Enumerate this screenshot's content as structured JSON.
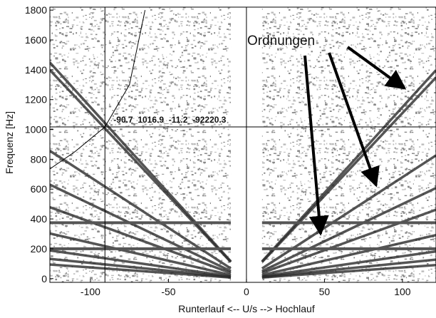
{
  "chart_data": {
    "type": "order-map",
    "xlabel": "Runterlauf <-- U/s --> Hochlauf",
    "ylabel": "Frequenz [Hz]",
    "xlim": [
      -126,
      121.5
    ],
    "ylim": [
      -25,
      1820
    ],
    "xticks": [
      -100,
      -50,
      0,
      50,
      100
    ],
    "yticks": [
      0,
      200,
      400,
      600,
      800,
      1000,
      1200,
      1400,
      1600,
      1800
    ],
    "gap_xlim": [
      -10,
      10
    ],
    "orders": [
      11.5,
      11.1,
      6.8,
      5,
      3.8,
      2.4,
      1.5,
      1.05,
      0.75
    ],
    "constant_frequencies": [
      375,
      200
    ],
    "line_color": "#2a2a2a",
    "curve": {
      "x": [
        -126,
        -110,
        -90.7,
        -75,
        -65
      ],
      "values": [
        735,
        850,
        1017,
        1300,
        1800
      ]
    },
    "cursor": {
      "x": -90.7,
      "y": 1016.9,
      "label": "-90.7_1016.9_-11.2_-92220.3"
    },
    "annotation": "Ordnungen"
  }
}
